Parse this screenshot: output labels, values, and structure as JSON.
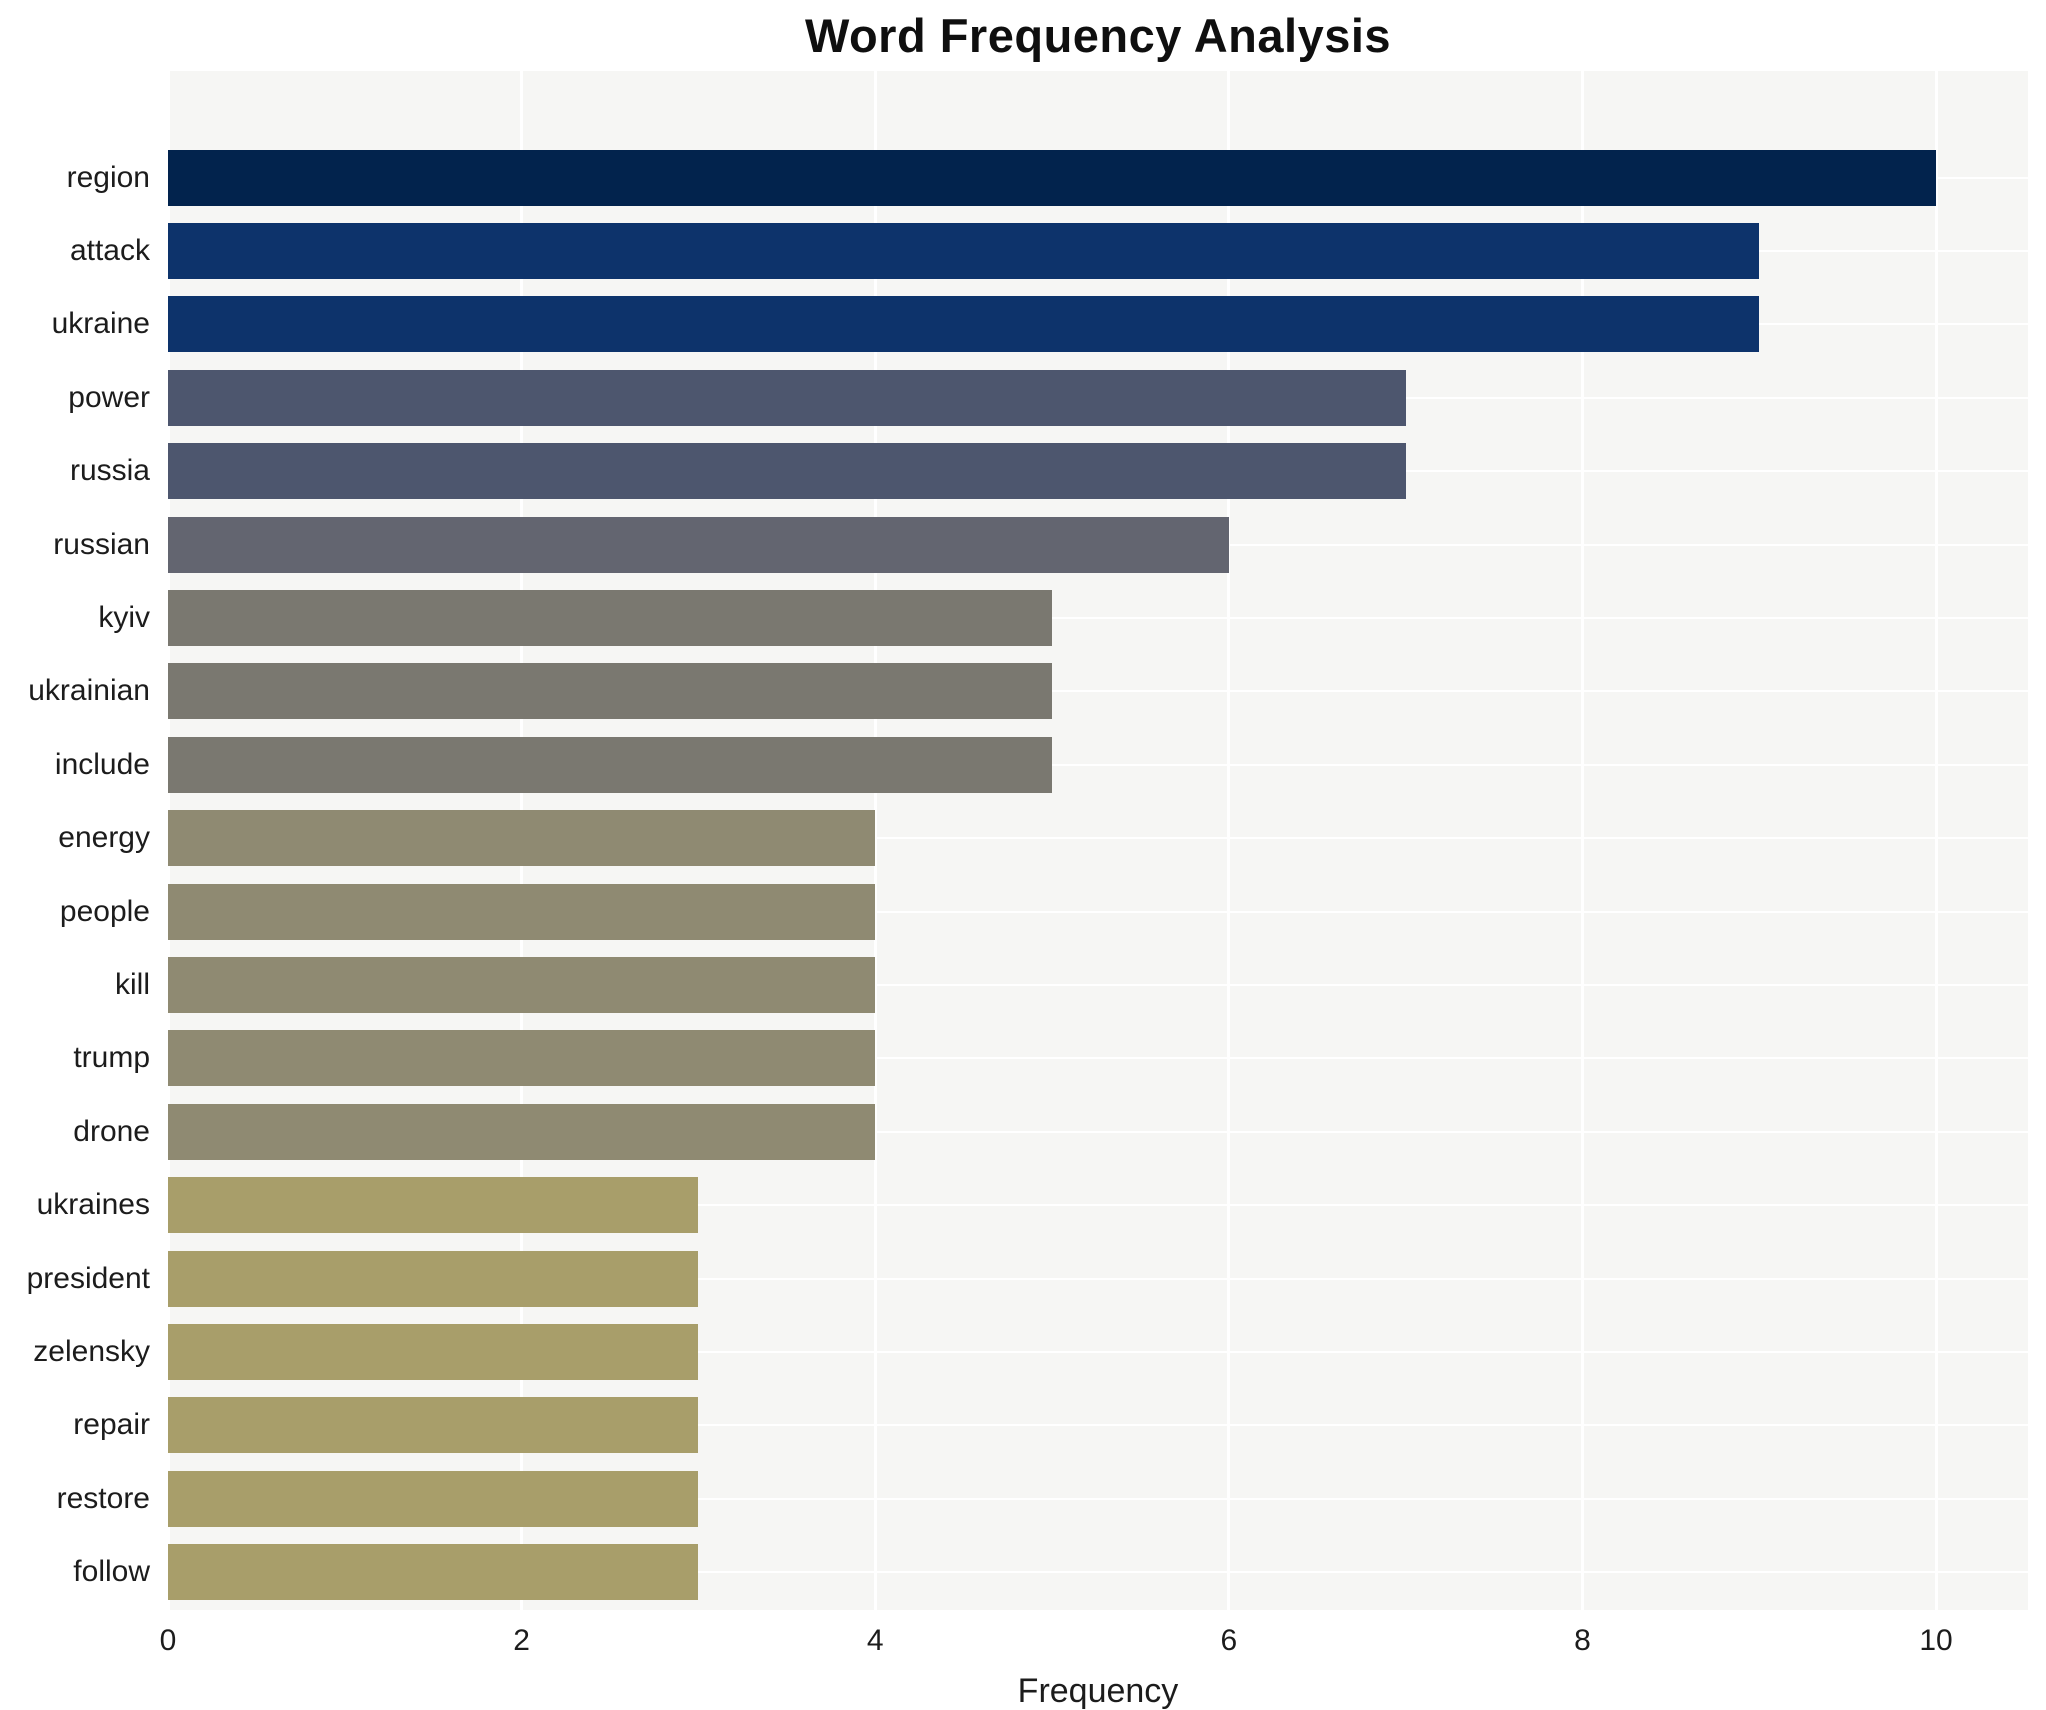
{
  "chart_data": {
    "type": "bar",
    "orientation": "horizontal",
    "title": "Word Frequency Analysis",
    "xlabel": "Frequency",
    "ylabel": "",
    "categories": [
      "region",
      "attack",
      "ukraine",
      "power",
      "russia",
      "russian",
      "kyiv",
      "ukrainian",
      "include",
      "energy",
      "people",
      "kill",
      "trump",
      "drone",
      "ukraines",
      "president",
      "zelensky",
      "repair",
      "restore",
      "follow"
    ],
    "values": [
      10,
      9,
      9,
      7,
      7,
      6,
      5,
      5,
      5,
      4,
      4,
      4,
      4,
      4,
      3,
      3,
      3,
      3,
      3,
      3
    ],
    "bar_colors": [
      "#02234d",
      "#0d336b",
      "#0d336b",
      "#4d566e",
      "#4d566e",
      "#636570",
      "#7a7870",
      "#7a7870",
      "#7a7870",
      "#8f8a72",
      "#8f8a72",
      "#8f8a72",
      "#8f8a72",
      "#8f8a72",
      "#a89e6a",
      "#a89e6a",
      "#a89e6a",
      "#a89e6a",
      "#a89e6a",
      "#a89e6a"
    ],
    "xlim": [
      0,
      10.52
    ],
    "xticks": [
      0,
      2,
      4,
      6,
      8,
      10
    ],
    "grid": true,
    "legend": "none",
    "plot_background": "#f6f6f4",
    "grid_color": "#ffffff",
    "title_color": "#0f0f0f",
    "tick_label_color": "#1c1c1c"
  }
}
